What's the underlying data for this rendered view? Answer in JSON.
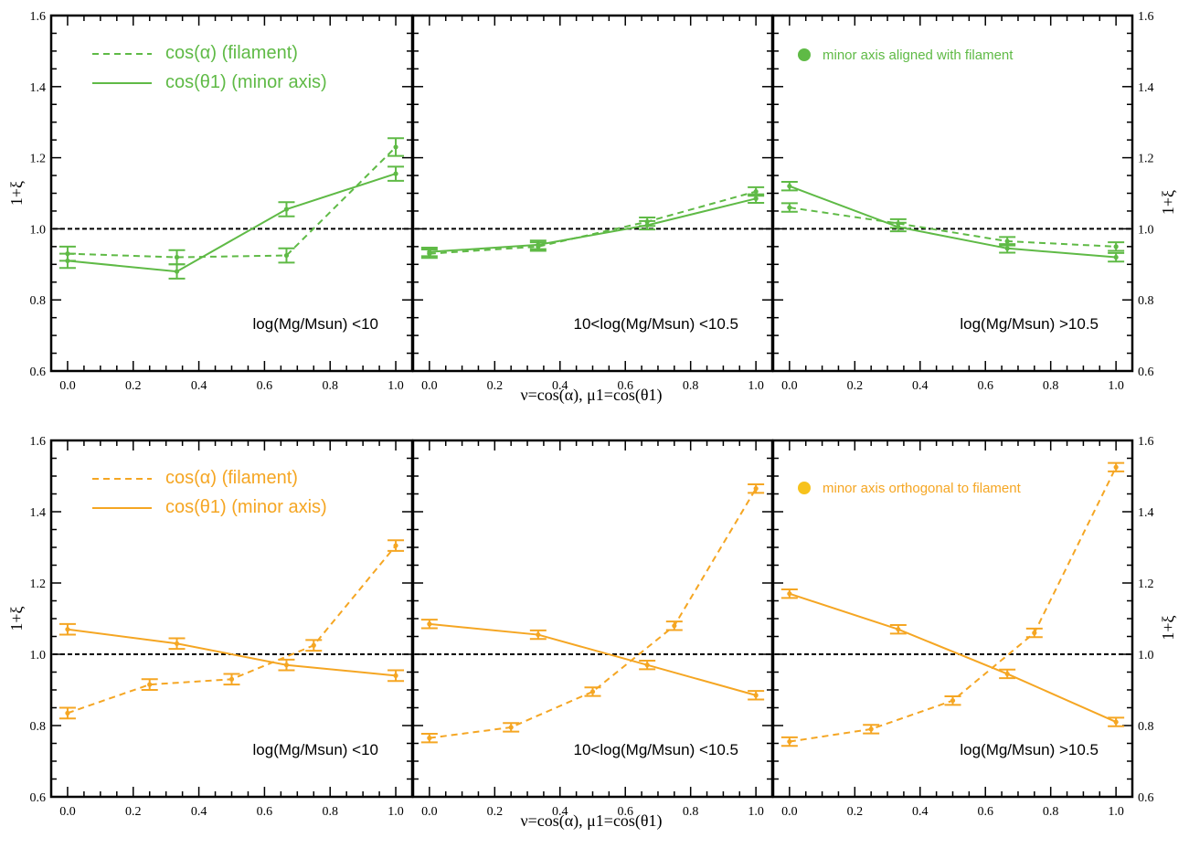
{
  "colors": {
    "green": "#5fba46",
    "orange": "#f5a623",
    "orange_marker": "#f7c21c",
    "ref_line": "#000000"
  },
  "chart_data": {
    "type": "line",
    "x_range": [
      -0.05,
      1.05
    ],
    "y_range": [
      0.6,
      1.6
    ],
    "x_ticks": [
      "0.0",
      "0.2",
      "0.4",
      "0.6",
      "0.8",
      "1.0"
    ],
    "y_ticks": [
      "0.6",
      "0.8",
      "1.0",
      "1.2",
      "1.4",
      "1.6"
    ],
    "reference_line": 1.0,
    "xlabel": "ν=cos(α), μ1=cos(θ1)",
    "ylabel": "1+ξ",
    "rows": [
      {
        "color": "green",
        "legend": {
          "filament": "cos(α)  (filament)",
          "minor": "cos(θ1) (minor axis)"
        },
        "note": "minor axis aligned with filament",
        "panels": [
          {
            "label": "log(Mg/Msun) <10",
            "series": [
              {
                "key": "filament",
                "style": "dashed",
                "x": [
                  0.0,
                  0.333,
                  0.667,
                  1.0
                ],
                "y": [
                  0.93,
                  0.92,
                  0.925,
                  1.23
                ],
                "err": [
                  0.02,
                  0.02,
                  0.02,
                  0.025
                ]
              },
              {
                "key": "minor",
                "style": "solid",
                "x": [
                  0.0,
                  0.333,
                  0.667,
                  1.0
                ],
                "y": [
                  0.91,
                  0.88,
                  1.055,
                  1.155
                ],
                "err": [
                  0.02,
                  0.02,
                  0.02,
                  0.02
                ]
              }
            ]
          },
          {
            "label": "10<log(Mg/Msun) <10.5",
            "series": [
              {
                "key": "filament",
                "style": "dashed",
                "x": [
                  0.0,
                  0.333,
                  0.667,
                  1.0
                ],
                "y": [
                  0.93,
                  0.95,
                  1.02,
                  1.105
                ],
                "err": [
                  0.012,
                  0.012,
                  0.012,
                  0.012
                ]
              },
              {
                "key": "minor",
                "style": "solid",
                "x": [
                  0.0,
                  0.333,
                  0.667,
                  1.0
                ],
                "y": [
                  0.935,
                  0.955,
                  1.01,
                  1.085
                ],
                "err": [
                  0.012,
                  0.012,
                  0.012,
                  0.012
                ]
              }
            ]
          },
          {
            "label": "log(Mg/Msun) >10.5",
            "series": [
              {
                "key": "filament",
                "style": "dashed",
                "x": [
                  0.0,
                  0.333,
                  0.667,
                  1.0
                ],
                "y": [
                  1.06,
                  1.015,
                  0.965,
                  0.95
                ],
                "err": [
                  0.012,
                  0.012,
                  0.012,
                  0.012
                ]
              },
              {
                "key": "minor",
                "style": "solid",
                "x": [
                  0.0,
                  0.333,
                  0.667,
                  1.0
                ],
                "y": [
                  1.12,
                  1.005,
                  0.945,
                  0.92
                ],
                "err": [
                  0.012,
                  0.012,
                  0.012,
                  0.012
                ]
              }
            ]
          }
        ]
      },
      {
        "color": "orange",
        "legend": {
          "filament": "cos(α)  (filament)",
          "minor": "cos(θ1) (minor axis)"
        },
        "note": "minor axis orthogonal to filament",
        "panels": [
          {
            "label": "log(Mg/Msun) <10",
            "series": [
              {
                "key": "filament",
                "style": "dashed",
                "x": [
                  0.0,
                  0.25,
                  0.5,
                  0.75,
                  1.0
                ],
                "y": [
                  0.835,
                  0.915,
                  0.93,
                  1.025,
                  1.305
                ],
                "err": [
                  0.015,
                  0.015,
                  0.015,
                  0.015,
                  0.015
                ]
              },
              {
                "key": "minor",
                "style": "solid",
                "x": [
                  0.0,
                  0.333,
                  0.667,
                  1.0
                ],
                "y": [
                  1.07,
                  1.03,
                  0.97,
                  0.94
                ],
                "err": [
                  0.015,
                  0.015,
                  0.015,
                  0.015
                ]
              }
            ]
          },
          {
            "label": "10<log(Mg/Msun) <10.5",
            "series": [
              {
                "key": "filament",
                "style": "dashed",
                "x": [
                  0.0,
                  0.25,
                  0.5,
                  0.75,
                  1.0
                ],
                "y": [
                  0.765,
                  0.795,
                  0.895,
                  1.08,
                  1.465
                ],
                "err": [
                  0.012,
                  0.012,
                  0.012,
                  0.012,
                  0.012
                ]
              },
              {
                "key": "minor",
                "style": "solid",
                "x": [
                  0.0,
                  0.333,
                  0.667,
                  1.0
                ],
                "y": [
                  1.085,
                  1.055,
                  0.97,
                  0.885
                ],
                "err": [
                  0.012,
                  0.012,
                  0.012,
                  0.012
                ]
              }
            ]
          },
          {
            "label": "log(Mg/Msun) >10.5",
            "series": [
              {
                "key": "filament",
                "style": "dashed",
                "x": [
                  0.0,
                  0.25,
                  0.5,
                  0.75,
                  1.0
                ],
                "y": [
                  0.755,
                  0.79,
                  0.87,
                  1.06,
                  1.525
                ],
                "err": [
                  0.012,
                  0.012,
                  0.012,
                  0.012,
                  0.012
                ]
              },
              {
                "key": "minor",
                "style": "solid",
                "x": [
                  0.0,
                  0.333,
                  0.667,
                  1.0
                ],
                "y": [
                  1.17,
                  1.07,
                  0.945,
                  0.81
                ],
                "err": [
                  0.012,
                  0.012,
                  0.012,
                  0.012
                ]
              }
            ]
          }
        ]
      }
    ]
  }
}
